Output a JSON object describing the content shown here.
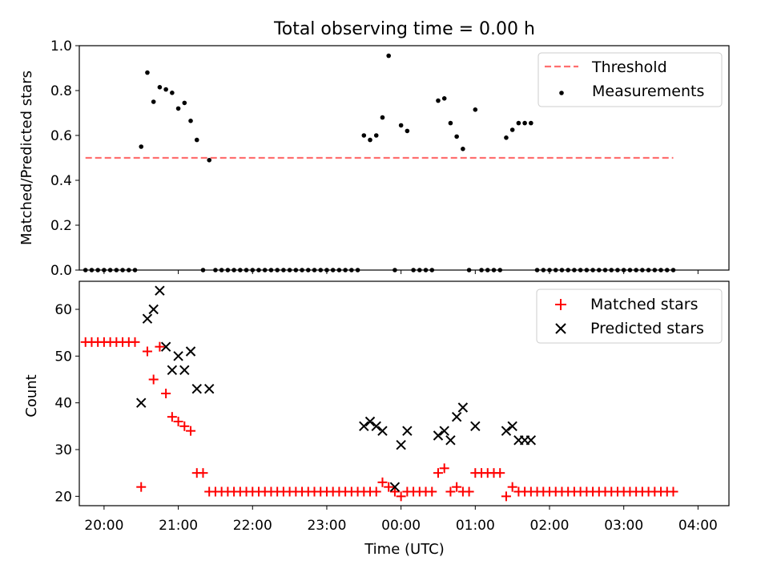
{
  "title": "Total observing time = 0.00 h",
  "chart_data": [
    {
      "type": "scatter",
      "ylabel": "Matched/Predicted stars",
      "xlabel": "",
      "ylim": [
        0,
        1.0
      ],
      "yticks": [
        {
          "value": 0.0,
          "label": "0.0"
        },
        {
          "value": 0.2,
          "label": "0.2"
        },
        {
          "value": 0.4,
          "label": "0.4"
        },
        {
          "value": 0.6,
          "label": "0.6"
        },
        {
          "value": 0.8,
          "label": "0.8"
        },
        {
          "value": 1.0,
          "label": "1.0"
        }
      ],
      "grid": false,
      "legend_position": "top-right",
      "threshold": {
        "name": "Threshold",
        "value": 0.5,
        "x_start": "19:45",
        "x_end": "03:40",
        "color": "#ff6f6f"
      },
      "series": [
        {
          "name": "Measurements",
          "color": "#000000",
          "points": [
            [
              "19:45",
              0
            ],
            [
              "19:50",
              0
            ],
            [
              "19:55",
              0
            ],
            [
              "20:00",
              0
            ],
            [
              "20:05",
              0
            ],
            [
              "20:10",
              0
            ],
            [
              "20:15",
              0
            ],
            [
              "20:20",
              0
            ],
            [
              "20:25",
              0
            ],
            [
              "20:30",
              0.55
            ],
            [
              "20:35",
              0.88
            ],
            [
              "20:40",
              0.75
            ],
            [
              "20:45",
              0.815
            ],
            [
              "20:50",
              0.805
            ],
            [
              "20:55",
              0.79
            ],
            [
              "21:00",
              0.72
            ],
            [
              "21:05",
              0.745
            ],
            [
              "21:10",
              0.665
            ],
            [
              "21:15",
              0.58
            ],
            [
              "21:20",
              0
            ],
            [
              "21:25",
              0.49
            ],
            [
              "21:30",
              0
            ],
            [
              "21:35",
              0
            ],
            [
              "21:40",
              0
            ],
            [
              "21:45",
              0
            ],
            [
              "21:50",
              0
            ],
            [
              "21:55",
              0
            ],
            [
              "22:00",
              0
            ],
            [
              "22:05",
              0
            ],
            [
              "22:10",
              0
            ],
            [
              "22:15",
              0
            ],
            [
              "22:20",
              0
            ],
            [
              "22:25",
              0
            ],
            [
              "22:30",
              0
            ],
            [
              "22:35",
              0
            ],
            [
              "22:40",
              0
            ],
            [
              "22:45",
              0
            ],
            [
              "22:50",
              0
            ],
            [
              "22:55",
              0
            ],
            [
              "23:00",
              0
            ],
            [
              "23:05",
              0
            ],
            [
              "23:10",
              0
            ],
            [
              "23:15",
              0
            ],
            [
              "23:20",
              0
            ],
            [
              "23:25",
              0
            ],
            [
              "23:30",
              0.6
            ],
            [
              "23:35",
              0.58
            ],
            [
              "23:40",
              0.6
            ],
            [
              "23:45",
              0.68
            ],
            [
              "23:50",
              0.955
            ],
            [
              "23:55",
              0
            ],
            [
              "00:00",
              0.645
            ],
            [
              "00:05",
              0.62
            ],
            [
              "00:10",
              0
            ],
            [
              "00:15",
              0
            ],
            [
              "00:20",
              0
            ],
            [
              "00:25",
              0
            ],
            [
              "00:30",
              0.755
            ],
            [
              "00:35",
              0.765
            ],
            [
              "00:40",
              0.655
            ],
            [
              "00:45",
              0.595
            ],
            [
              "00:50",
              0.54
            ],
            [
              "00:55",
              0
            ],
            [
              "01:00",
              0.715
            ],
            [
              "01:05",
              0
            ],
            [
              "01:10",
              0
            ],
            [
              "01:15",
              0
            ],
            [
              "01:20",
              0
            ],
            [
              "01:25",
              0.59
            ],
            [
              "01:30",
              0.625
            ],
            [
              "01:35",
              0.655
            ],
            [
              "01:40",
              0.655
            ],
            [
              "01:45",
              0.655
            ],
            [
              "01:50",
              0
            ],
            [
              "01:55",
              0
            ],
            [
              "02:00",
              0
            ],
            [
              "02:05",
              0
            ],
            [
              "02:10",
              0
            ],
            [
              "02:15",
              0
            ],
            [
              "02:20",
              0
            ],
            [
              "02:25",
              0
            ],
            [
              "02:30",
              0
            ],
            [
              "02:35",
              0
            ],
            [
              "02:40",
              0
            ],
            [
              "02:45",
              0
            ],
            [
              "02:50",
              0
            ],
            [
              "02:55",
              0
            ],
            [
              "03:00",
              0
            ],
            [
              "03:05",
              0
            ],
            [
              "03:10",
              0
            ],
            [
              "03:15",
              0
            ],
            [
              "03:20",
              0
            ],
            [
              "03:25",
              0
            ],
            [
              "03:30",
              0
            ],
            [
              "03:35",
              0
            ],
            [
              "03:40",
              0
            ]
          ]
        }
      ]
    },
    {
      "type": "scatter",
      "ylabel": "Count",
      "xlabel": "Time (UTC)",
      "ylim": [
        18,
        66
      ],
      "yticks": [
        {
          "value": 20,
          "label": "20"
        },
        {
          "value": 30,
          "label": "30"
        },
        {
          "value": 40,
          "label": "40"
        },
        {
          "value": 50,
          "label": "50"
        },
        {
          "value": 60,
          "label": "60"
        }
      ],
      "xticks": [
        {
          "value": "20:00",
          "label": "20:00"
        },
        {
          "value": "21:00",
          "label": "21:00"
        },
        {
          "value": "22:00",
          "label": "22:00"
        },
        {
          "value": "23:00",
          "label": "23:00"
        },
        {
          "value": "00:00",
          "label": "00:00"
        },
        {
          "value": "01:00",
          "label": "01:00"
        },
        {
          "value": "02:00",
          "label": "02:00"
        },
        {
          "value": "03:00",
          "label": "03:00"
        },
        {
          "value": "04:00",
          "label": "04:00"
        }
      ],
      "grid": false,
      "legend_position": "top-right",
      "series": [
        {
          "name": "Matched stars",
          "color": "#ff0000",
          "marker": "plus",
          "points": [
            [
              "19:45",
              53
            ],
            [
              "19:50",
              53
            ],
            [
              "19:55",
              53
            ],
            [
              "20:00",
              53
            ],
            [
              "20:05",
              53
            ],
            [
              "20:10",
              53
            ],
            [
              "20:15",
              53
            ],
            [
              "20:20",
              53
            ],
            [
              "20:25",
              53
            ],
            [
              "20:30",
              22
            ],
            [
              "20:35",
              51
            ],
            [
              "20:40",
              45
            ],
            [
              "20:45",
              52
            ],
            [
              "20:50",
              42
            ],
            [
              "20:55",
              37
            ],
            [
              "21:00",
              36
            ],
            [
              "21:05",
              35
            ],
            [
              "21:10",
              34
            ],
            [
              "21:15",
              25
            ],
            [
              "21:20",
              25
            ],
            [
              "21:25",
              21
            ],
            [
              "21:30",
              21
            ],
            [
              "21:35",
              21
            ],
            [
              "21:40",
              21
            ],
            [
              "21:45",
              21
            ],
            [
              "21:50",
              21
            ],
            [
              "21:55",
              21
            ],
            [
              "22:00",
              21
            ],
            [
              "22:05",
              21
            ],
            [
              "22:10",
              21
            ],
            [
              "22:15",
              21
            ],
            [
              "22:20",
              21
            ],
            [
              "22:25",
              21
            ],
            [
              "22:30",
              21
            ],
            [
              "22:35",
              21
            ],
            [
              "22:40",
              21
            ],
            [
              "22:45",
              21
            ],
            [
              "22:50",
              21
            ],
            [
              "22:55",
              21
            ],
            [
              "23:00",
              21
            ],
            [
              "23:05",
              21
            ],
            [
              "23:10",
              21
            ],
            [
              "23:15",
              21
            ],
            [
              "23:20",
              21
            ],
            [
              "23:25",
              21
            ],
            [
              "23:30",
              21
            ],
            [
              "23:35",
              21
            ],
            [
              "23:40",
              21
            ],
            [
              "23:45",
              23
            ],
            [
              "23:50",
              22
            ],
            [
              "23:55",
              21
            ],
            [
              "00:00",
              20
            ],
            [
              "00:05",
              21
            ],
            [
              "00:10",
              21
            ],
            [
              "00:15",
              21
            ],
            [
              "00:20",
              21
            ],
            [
              "00:25",
              21
            ],
            [
              "00:30",
              25
            ],
            [
              "00:35",
              26
            ],
            [
              "00:40",
              21
            ],
            [
              "00:45",
              22
            ],
            [
              "00:50",
              21
            ],
            [
              "00:55",
              21
            ],
            [
              "01:00",
              25
            ],
            [
              "01:05",
              25
            ],
            [
              "01:10",
              25
            ],
            [
              "01:15",
              25
            ],
            [
              "01:20",
              25
            ],
            [
              "01:25",
              20
            ],
            [
              "01:30",
              22
            ],
            [
              "01:35",
              21
            ],
            [
              "01:40",
              21
            ],
            [
              "01:45",
              21
            ],
            [
              "01:50",
              21
            ],
            [
              "01:55",
              21
            ],
            [
              "02:00",
              21
            ],
            [
              "02:05",
              21
            ],
            [
              "02:10",
              21
            ],
            [
              "02:15",
              21
            ],
            [
              "02:20",
              21
            ],
            [
              "02:25",
              21
            ],
            [
              "02:30",
              21
            ],
            [
              "02:35",
              21
            ],
            [
              "02:40",
              21
            ],
            [
              "02:45",
              21
            ],
            [
              "02:50",
              21
            ],
            [
              "02:55",
              21
            ],
            [
              "03:00",
              21
            ],
            [
              "03:05",
              21
            ],
            [
              "03:10",
              21
            ],
            [
              "03:15",
              21
            ],
            [
              "03:20",
              21
            ],
            [
              "03:25",
              21
            ],
            [
              "03:30",
              21
            ],
            [
              "03:35",
              21
            ],
            [
              "03:40",
              21
            ]
          ]
        },
        {
          "name": "Predicted stars",
          "color": "#000000",
          "marker": "x",
          "points": [
            [
              "20:30",
              40
            ],
            [
              "20:35",
              58
            ],
            [
              "20:40",
              60
            ],
            [
              "20:45",
              64
            ],
            [
              "20:50",
              52
            ],
            [
              "20:55",
              47
            ],
            [
              "21:00",
              50
            ],
            [
              "21:05",
              47
            ],
            [
              "21:10",
              51
            ],
            [
              "21:15",
              43
            ],
            [
              "21:25",
              43
            ],
            [
              "23:30",
              35
            ],
            [
              "23:35",
              36
            ],
            [
              "23:40",
              35
            ],
            [
              "23:45",
              34
            ],
            [
              "23:55",
              22
            ],
            [
              "00:00",
              31
            ],
            [
              "00:05",
              34
            ],
            [
              "00:30",
              33
            ],
            [
              "00:35",
              34
            ],
            [
              "00:40",
              32
            ],
            [
              "00:45",
              37
            ],
            [
              "00:50",
              39
            ],
            [
              "01:00",
              35
            ],
            [
              "01:25",
              34
            ],
            [
              "01:30",
              35
            ],
            [
              "01:35",
              32
            ],
            [
              "01:40",
              32
            ],
            [
              "01:45",
              32
            ]
          ]
        }
      ]
    }
  ]
}
